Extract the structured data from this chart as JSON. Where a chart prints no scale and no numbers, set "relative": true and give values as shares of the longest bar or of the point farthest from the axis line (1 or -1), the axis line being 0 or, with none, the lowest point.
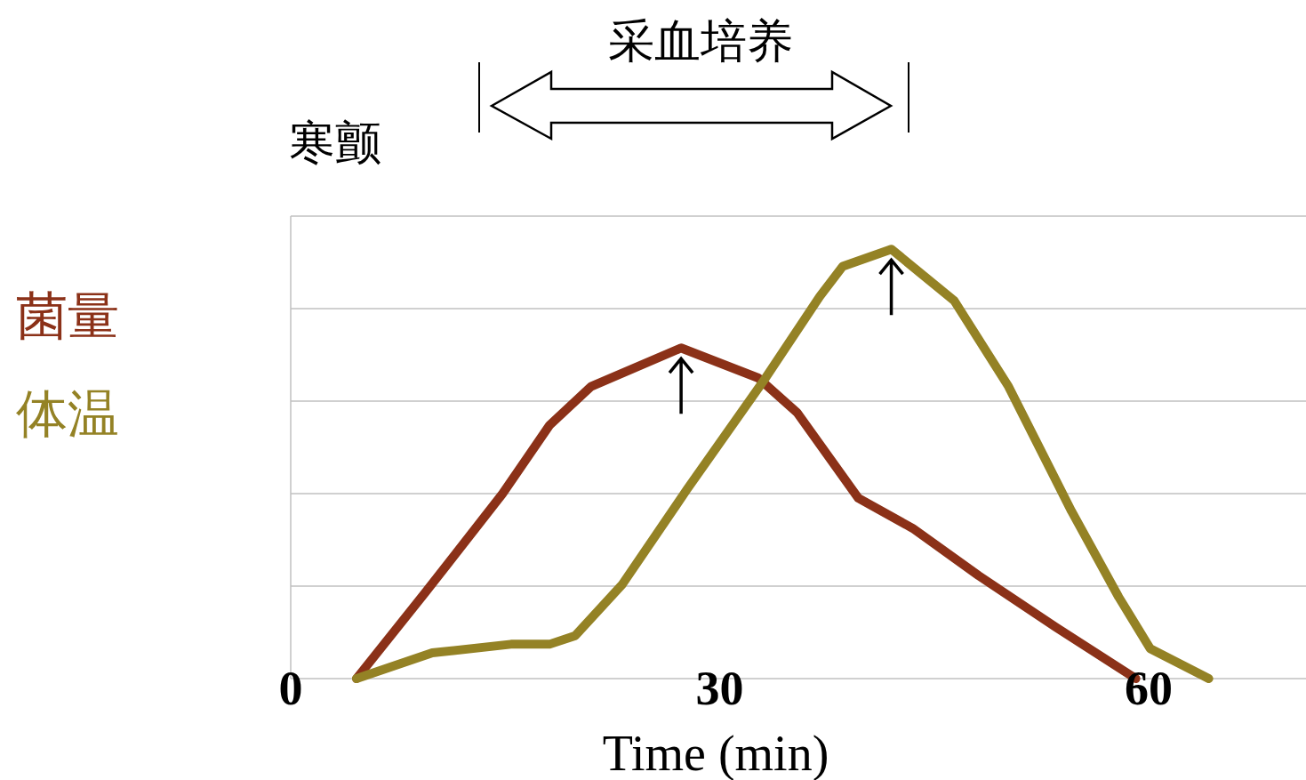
{
  "chart_data": {
    "type": "line",
    "relative": true,
    "xlabel": "Time (min)",
    "xlim": [
      0,
      71
    ],
    "xticks": [
      0,
      30,
      60
    ],
    "grid": "y",
    "legend": "left",
    "line_style": "solid",
    "annotations": [
      "寒颤",
      "采血培养"
    ],
    "series": [
      {
        "name": "菌量",
        "color": "#8b3118",
        "x": [
          4.6,
          9.4,
          14.8,
          18.1,
          21.0,
          27.3,
          32.7,
          35.4,
          39.7,
          43.5,
          48.1,
          53.5,
          59.1
        ],
        "values": [
          0,
          0.2,
          0.43,
          0.59,
          0.68,
          0.77,
          0.7,
          0.62,
          0.42,
          0.35,
          0.24,
          0.12,
          0
        ]
      },
      {
        "name": "体温",
        "color": "#948225",
        "x": [
          4.6,
          9.9,
          15.4,
          18.1,
          19.9,
          23.2,
          27.7,
          33.2,
          37.0,
          38.6,
          42.0,
          46.4,
          50.2,
          54.6,
          57.9,
          60.1,
          64.2
        ],
        "values": [
          0,
          0.06,
          0.08,
          0.08,
          0.1,
          0.22,
          0.44,
          0.7,
          0.89,
          0.96,
          1,
          0.88,
          0.68,
          0.39,
          0.19,
          0.07,
          0
        ]
      }
    ]
  }
}
